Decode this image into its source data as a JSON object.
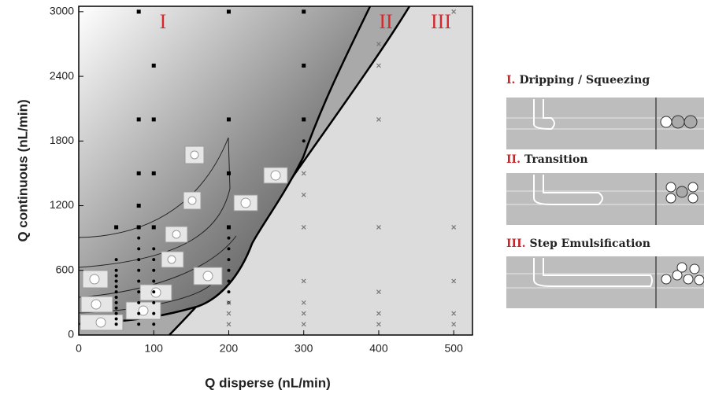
{
  "chart_data": {
    "type": "scatter",
    "x_label": "Q disperse (nL/min)",
    "y_label": "Q continuous (nL/min)",
    "region_labels": [
      "I",
      "II",
      "III"
    ],
    "xlim": [
      0,
      525
    ],
    "ylim": [
      0,
      3050
    ],
    "xticks": [
      0,
      100,
      200,
      300,
      400,
      500
    ],
    "yticks": [
      0,
      600,
      1200,
      1800,
      2400,
      3000
    ],
    "series": [
      {
        "marker": "square",
        "color": "#000000",
        "x": [
          80,
          200,
          300,
          100,
          300,
          80,
          100,
          200,
          80,
          100,
          200,
          80,
          50,
          80,
          100,
          200,
          300
        ],
        "y": [
          3000,
          3000,
          3000,
          2500,
          2500,
          2000,
          2000,
          2000,
          1500,
          1500,
          1500,
          1200,
          1000,
          1000,
          1000,
          1000,
          2000
        ]
      },
      {
        "marker": "dot",
        "color": "#000000",
        "x": [
          50,
          50,
          50,
          50,
          50,
          50,
          50,
          50,
          50,
          50,
          50,
          50,
          80,
          80,
          80,
          80,
          80,
          80,
          80,
          80,
          80,
          100,
          100,
          100,
          100,
          100,
          100,
          100,
          100,
          200,
          200,
          200,
          200,
          200,
          200,
          200,
          300
        ],
        "y": [
          100,
          150,
          200,
          250,
          300,
          350,
          400,
          450,
          500,
          550,
          600,
          700,
          100,
          200,
          300,
          400,
          500,
          600,
          700,
          800,
          900,
          100,
          200,
          300,
          400,
          500,
          600,
          700,
          800,
          300,
          400,
          500,
          600,
          700,
          800,
          900,
          1800
        ]
      },
      {
        "marker": "cross",
        "color": "#777777",
        "x": [
          500,
          400,
          400,
          400,
          300,
          300,
          300,
          400,
          500,
          300,
          400,
          500,
          300,
          300,
          300,
          400,
          400,
          500,
          500,
          200,
          200,
          200
        ],
        "y": [
          3000,
          2700,
          2500,
          2000,
          1500,
          1300,
          1000,
          1000,
          1000,
          500,
          400,
          500,
          300,
          200,
          100,
          200,
          100,
          200,
          100,
          300,
          200,
          100
        ]
      }
    ]
  },
  "panels": [
    {
      "numeral": "I.",
      "title": "Dripping / Squeezing"
    },
    {
      "numeral": "II.",
      "title": "Transition"
    },
    {
      "numeral": "III.",
      "title": "Step Emulsification"
    }
  ]
}
